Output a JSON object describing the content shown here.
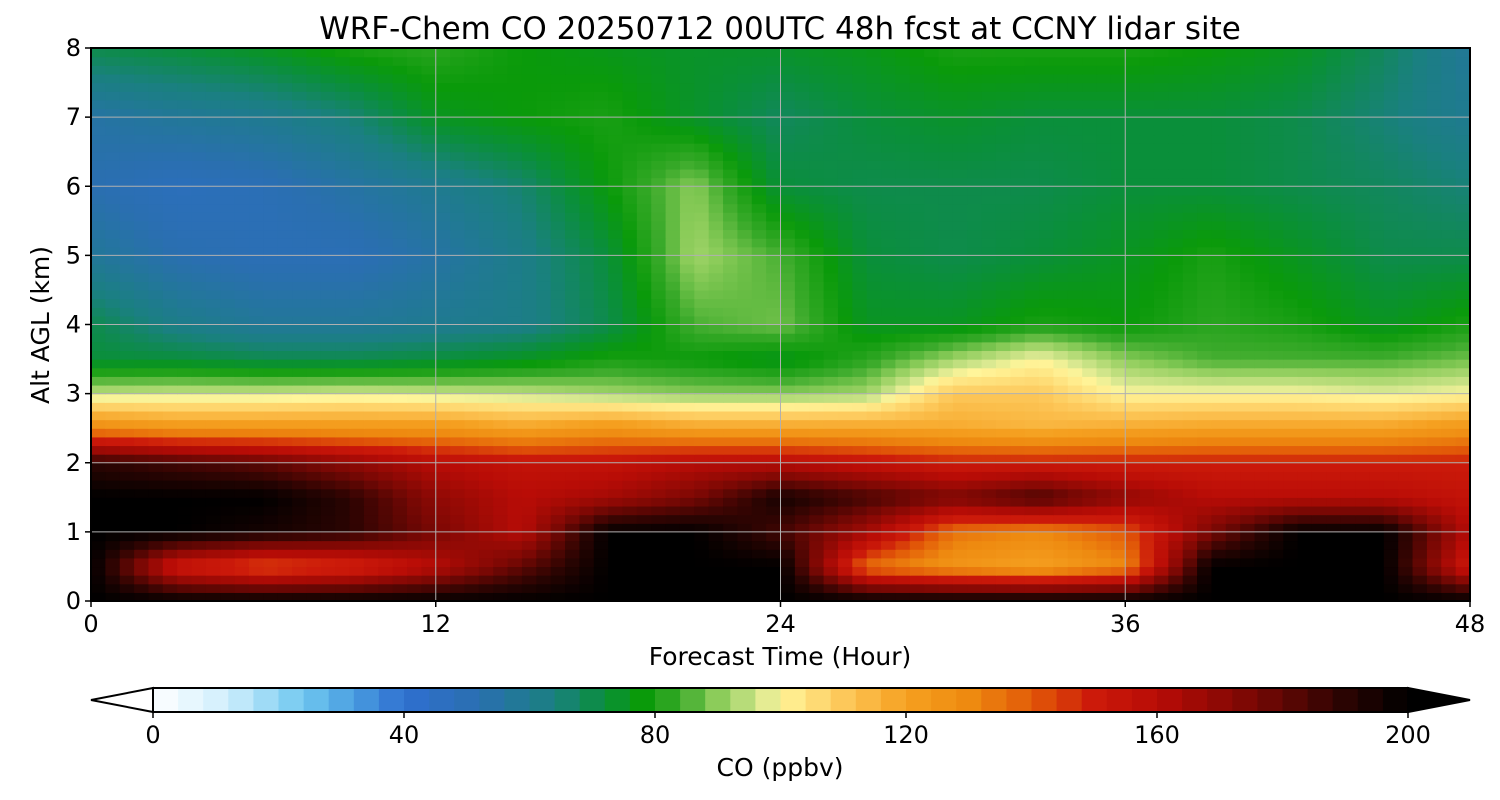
{
  "chart_data": {
    "type": "heatmap",
    "title": "WRF-Chem CO  20250712 00UTC 48h fcst at CCNY lidar site",
    "xlabel": "Forecast Time (Hour)",
    "ylabel": "Alt AGL (km)",
    "xlim": [
      0,
      48
    ],
    "ylim": [
      0,
      8
    ],
    "x_ticks": [
      "0",
      "12",
      "24",
      "36",
      "48"
    ],
    "y_ticks": [
      "0",
      "1",
      "2",
      "3",
      "4",
      "5",
      "6",
      "7",
      "8"
    ],
    "grid": true,
    "x": [
      0,
      3,
      6,
      9,
      12,
      15,
      18,
      21,
      24,
      27,
      30,
      33,
      36,
      39,
      42,
      45,
      48
    ],
    "y": [
      0,
      0.5,
      1,
      1.5,
      2,
      2.5,
      3,
      3.5,
      4,
      5,
      6,
      7,
      8
    ],
    "z": [
      [
        200,
        200,
        200,
        200,
        200,
        200,
        200,
        200,
        200,
        200,
        200,
        200,
        200,
        200,
        200,
        200,
        200
      ],
      [
        200,
        150,
        140,
        145,
        160,
        180,
        200,
        200,
        200,
        135,
        125,
        120,
        130,
        200,
        200,
        200,
        150
      ],
      [
        200,
        200,
        195,
        190,
        175,
        160,
        200,
        200,
        185,
        165,
        135,
        130,
        140,
        175,
        200,
        200,
        160
      ],
      [
        200,
        200,
        200,
        190,
        170,
        160,
        165,
        175,
        195,
        185,
        175,
        185,
        170,
        160,
        160,
        160,
        155
      ],
      [
        190,
        185,
        180,
        170,
        160,
        155,
        155,
        160,
        160,
        155,
        150,
        150,
        150,
        150,
        150,
        150,
        150
      ],
      [
        130,
        125,
        125,
        125,
        125,
        120,
        125,
        120,
        120,
        120,
        118,
        115,
        118,
        120,
        120,
        120,
        125
      ],
      [
        95,
        96,
        96,
        97,
        96,
        95,
        92,
        90,
        90,
        92,
        110,
        110,
        100,
        100,
        100,
        98,
        100
      ],
      [
        72,
        72,
        70,
        70,
        72,
        75,
        80,
        78,
        75,
        82,
        92,
        100,
        90,
        85,
        85,
        85,
        88
      ],
      [
        70,
        62,
        58,
        58,
        60,
        62,
        70,
        85,
        88,
        75,
        75,
        80,
        78,
        82,
        80,
        75,
        80
      ],
      [
        58,
        52,
        50,
        50,
        55,
        62,
        72,
        92,
        85,
        72,
        70,
        72,
        75,
        80,
        75,
        70,
        70
      ],
      [
        52,
        48,
        50,
        55,
        60,
        66,
        78,
        90,
        72,
        70,
        70,
        70,
        72,
        72,
        70,
        68,
        65
      ],
      [
        55,
        58,
        60,
        65,
        75,
        78,
        80,
        74,
        68,
        72,
        74,
        72,
        72,
        72,
        70,
        65,
        60
      ],
      [
        70,
        72,
        75,
        80,
        82,
        78,
        76,
        74,
        74,
        76,
        80,
        80,
        80,
        78,
        75,
        68,
        58
      ]
    ],
    "colorbar": {
      "label": "CO  (ppbv)",
      "ticks": [
        "0",
        "40",
        "80",
        "120",
        "160",
        "200"
      ],
      "min": 0,
      "max": 200,
      "extend": "both",
      "colors": [
        {
          "v": 0,
          "c": "#ffffff"
        },
        {
          "v": 12,
          "c": "#cfeefc"
        },
        {
          "v": 24,
          "c": "#6fc8f0"
        },
        {
          "v": 32,
          "c": "#4a9de0"
        },
        {
          "v": 40,
          "c": "#2f6fd0"
        },
        {
          "v": 52,
          "c": "#2a6fb0"
        },
        {
          "v": 64,
          "c": "#1a8080"
        },
        {
          "v": 72,
          "c": "#0a8f3a"
        },
        {
          "v": 78,
          "c": "#0a9a0a"
        },
        {
          "v": 84,
          "c": "#3aaa2a"
        },
        {
          "v": 90,
          "c": "#8ccc5a"
        },
        {
          "v": 97,
          "c": "#d8e890"
        },
        {
          "v": 100,
          "c": "#fff59a"
        },
        {
          "v": 110,
          "c": "#fdc85a"
        },
        {
          "v": 120,
          "c": "#f5a020"
        },
        {
          "v": 130,
          "c": "#ee8a10"
        },
        {
          "v": 140,
          "c": "#e25a08"
        },
        {
          "v": 150,
          "c": "#cc1a0a"
        },
        {
          "v": 160,
          "c": "#b80c06"
        },
        {
          "v": 175,
          "c": "#7a0804"
        },
        {
          "v": 190,
          "c": "#2a0402"
        },
        {
          "v": 200,
          "c": "#000000"
        }
      ]
    }
  }
}
